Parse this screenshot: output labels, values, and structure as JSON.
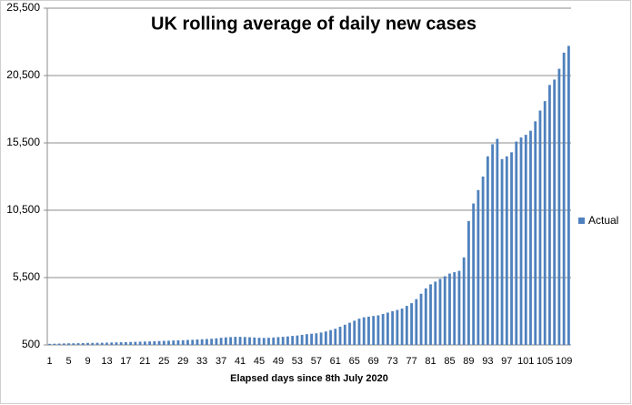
{
  "chart_data": {
    "type": "bar",
    "title": "UK rolling average of  daily new cases",
    "x_label": "Elapsed days since 8th July 2020",
    "categories": [
      "1",
      null,
      null,
      null,
      "5",
      null,
      null,
      null,
      "9",
      null,
      null,
      null,
      "13",
      null,
      null,
      null,
      "17",
      null,
      null,
      null,
      "21",
      null,
      null,
      null,
      "25",
      null,
      null,
      null,
      "29",
      null,
      null,
      null,
      "33",
      null,
      null,
      null,
      "37",
      null,
      null,
      null,
      "41",
      null,
      null,
      null,
      "45",
      null,
      null,
      null,
      "49",
      null,
      null,
      null,
      "53",
      null,
      null,
      null,
      "57",
      null,
      null,
      null,
      "61",
      null,
      null,
      null,
      "65",
      null,
      null,
      null,
      "69",
      null,
      null,
      null,
      "73",
      null,
      null,
      null,
      "77",
      null,
      null,
      null,
      "81",
      null,
      null,
      null,
      "85",
      null,
      null,
      null,
      "89",
      null,
      null,
      null,
      "93",
      null,
      null,
      null,
      "97",
      null,
      null,
      null,
      "101",
      null,
      null,
      null,
      "105",
      null,
      null,
      null,
      "109",
      null
    ],
    "series": [
      {
        "name": "Actual",
        "color": "#4f81bd",
        "values": [
          580,
          590,
          600,
          610,
          620,
          620,
          630,
          640,
          650,
          650,
          660,
          660,
          670,
          680,
          690,
          700,
          710,
          720,
          730,
          740,
          750,
          760,
          770,
          790,
          800,
          810,
          830,
          840,
          850,
          870,
          880,
          900,
          920,
          940,
          960,
          990,
          1030,
          1060,
          1080,
          1100,
          1100,
          1090,
          1070,
          1050,
          1030,
          1020,
          1030,
          1050,
          1080,
          1100,
          1130,
          1170,
          1200,
          1250,
          1300,
          1330,
          1360,
          1420,
          1500,
          1600,
          1700,
          1850,
          2000,
          2150,
          2300,
          2450,
          2550,
          2600,
          2650,
          2700,
          2800,
          2900,
          3000,
          3100,
          3200,
          3400,
          3600,
          3900,
          4300,
          4700,
          5000,
          5200,
          5400,
          5600,
          5800,
          5900,
          6000,
          7000,
          9700,
          11000,
          12000,
          13000,
          14500,
          15400,
          15800,
          14300,
          14500,
          14800,
          15600,
          15900,
          16100,
          16400,
          17100,
          17900,
          18600,
          19800,
          20200,
          21000,
          22200,
          22700
        ]
      }
    ],
    "ylim": [
      500,
      25500
    ],
    "yticks": [
      500,
      {
        "value": 5500,
        "label": "5,500"
      },
      {
        "value": 10500,
        "label": "10,500"
      },
      {
        "value": 15500,
        "label": "15,500"
      },
      {
        "value": 20500,
        "label": "20,500"
      },
      {
        "value": 25500,
        "label": "25,500"
      }
    ],
    "grid": true,
    "legend": "right"
  }
}
